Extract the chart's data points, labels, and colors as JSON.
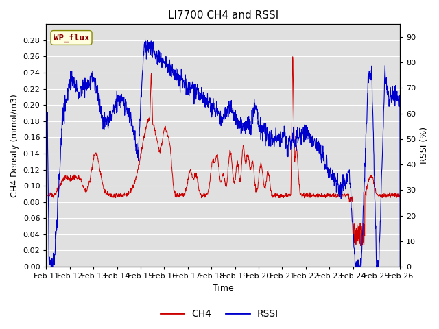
{
  "title": "LI7700 CH4 and RSSI",
  "xlabel": "Time",
  "ylabel_left": "CH4 Density (mmol/m3)",
  "ylabel_right": "RSSI (%)",
  "annotation": "WP_flux",
  "ylim_left": [
    0.0,
    0.3
  ],
  "ylim_right": [
    0,
    95
  ],
  "yticks_left": [
    0.0,
    0.02,
    0.04,
    0.06,
    0.08,
    0.1,
    0.12,
    0.14,
    0.16,
    0.18,
    0.2,
    0.22,
    0.24,
    0.26,
    0.28
  ],
  "yticks_right": [
    0,
    10,
    20,
    30,
    40,
    50,
    60,
    70,
    80,
    90
  ],
  "xtick_labels": [
    "Feb 11",
    "Feb 12",
    "Feb 13",
    "Feb 14",
    "Feb 15",
    "Feb 16",
    "Feb 17",
    "Feb 18",
    "Feb 19",
    "Feb 20",
    "Feb 21",
    "Feb 22",
    "Feb 23",
    "Feb 24",
    "Feb 25",
    "Feb 26"
  ],
  "ch4_color": "#CC0000",
  "rssi_color": "#0000CC",
  "bg_color": "#E0E0E0",
  "legend_ch4": "CH4",
  "legend_rssi": "RSSI",
  "title_fontsize": 11,
  "axis_fontsize": 9,
  "tick_fontsize": 8,
  "annotation_fontsize": 9
}
